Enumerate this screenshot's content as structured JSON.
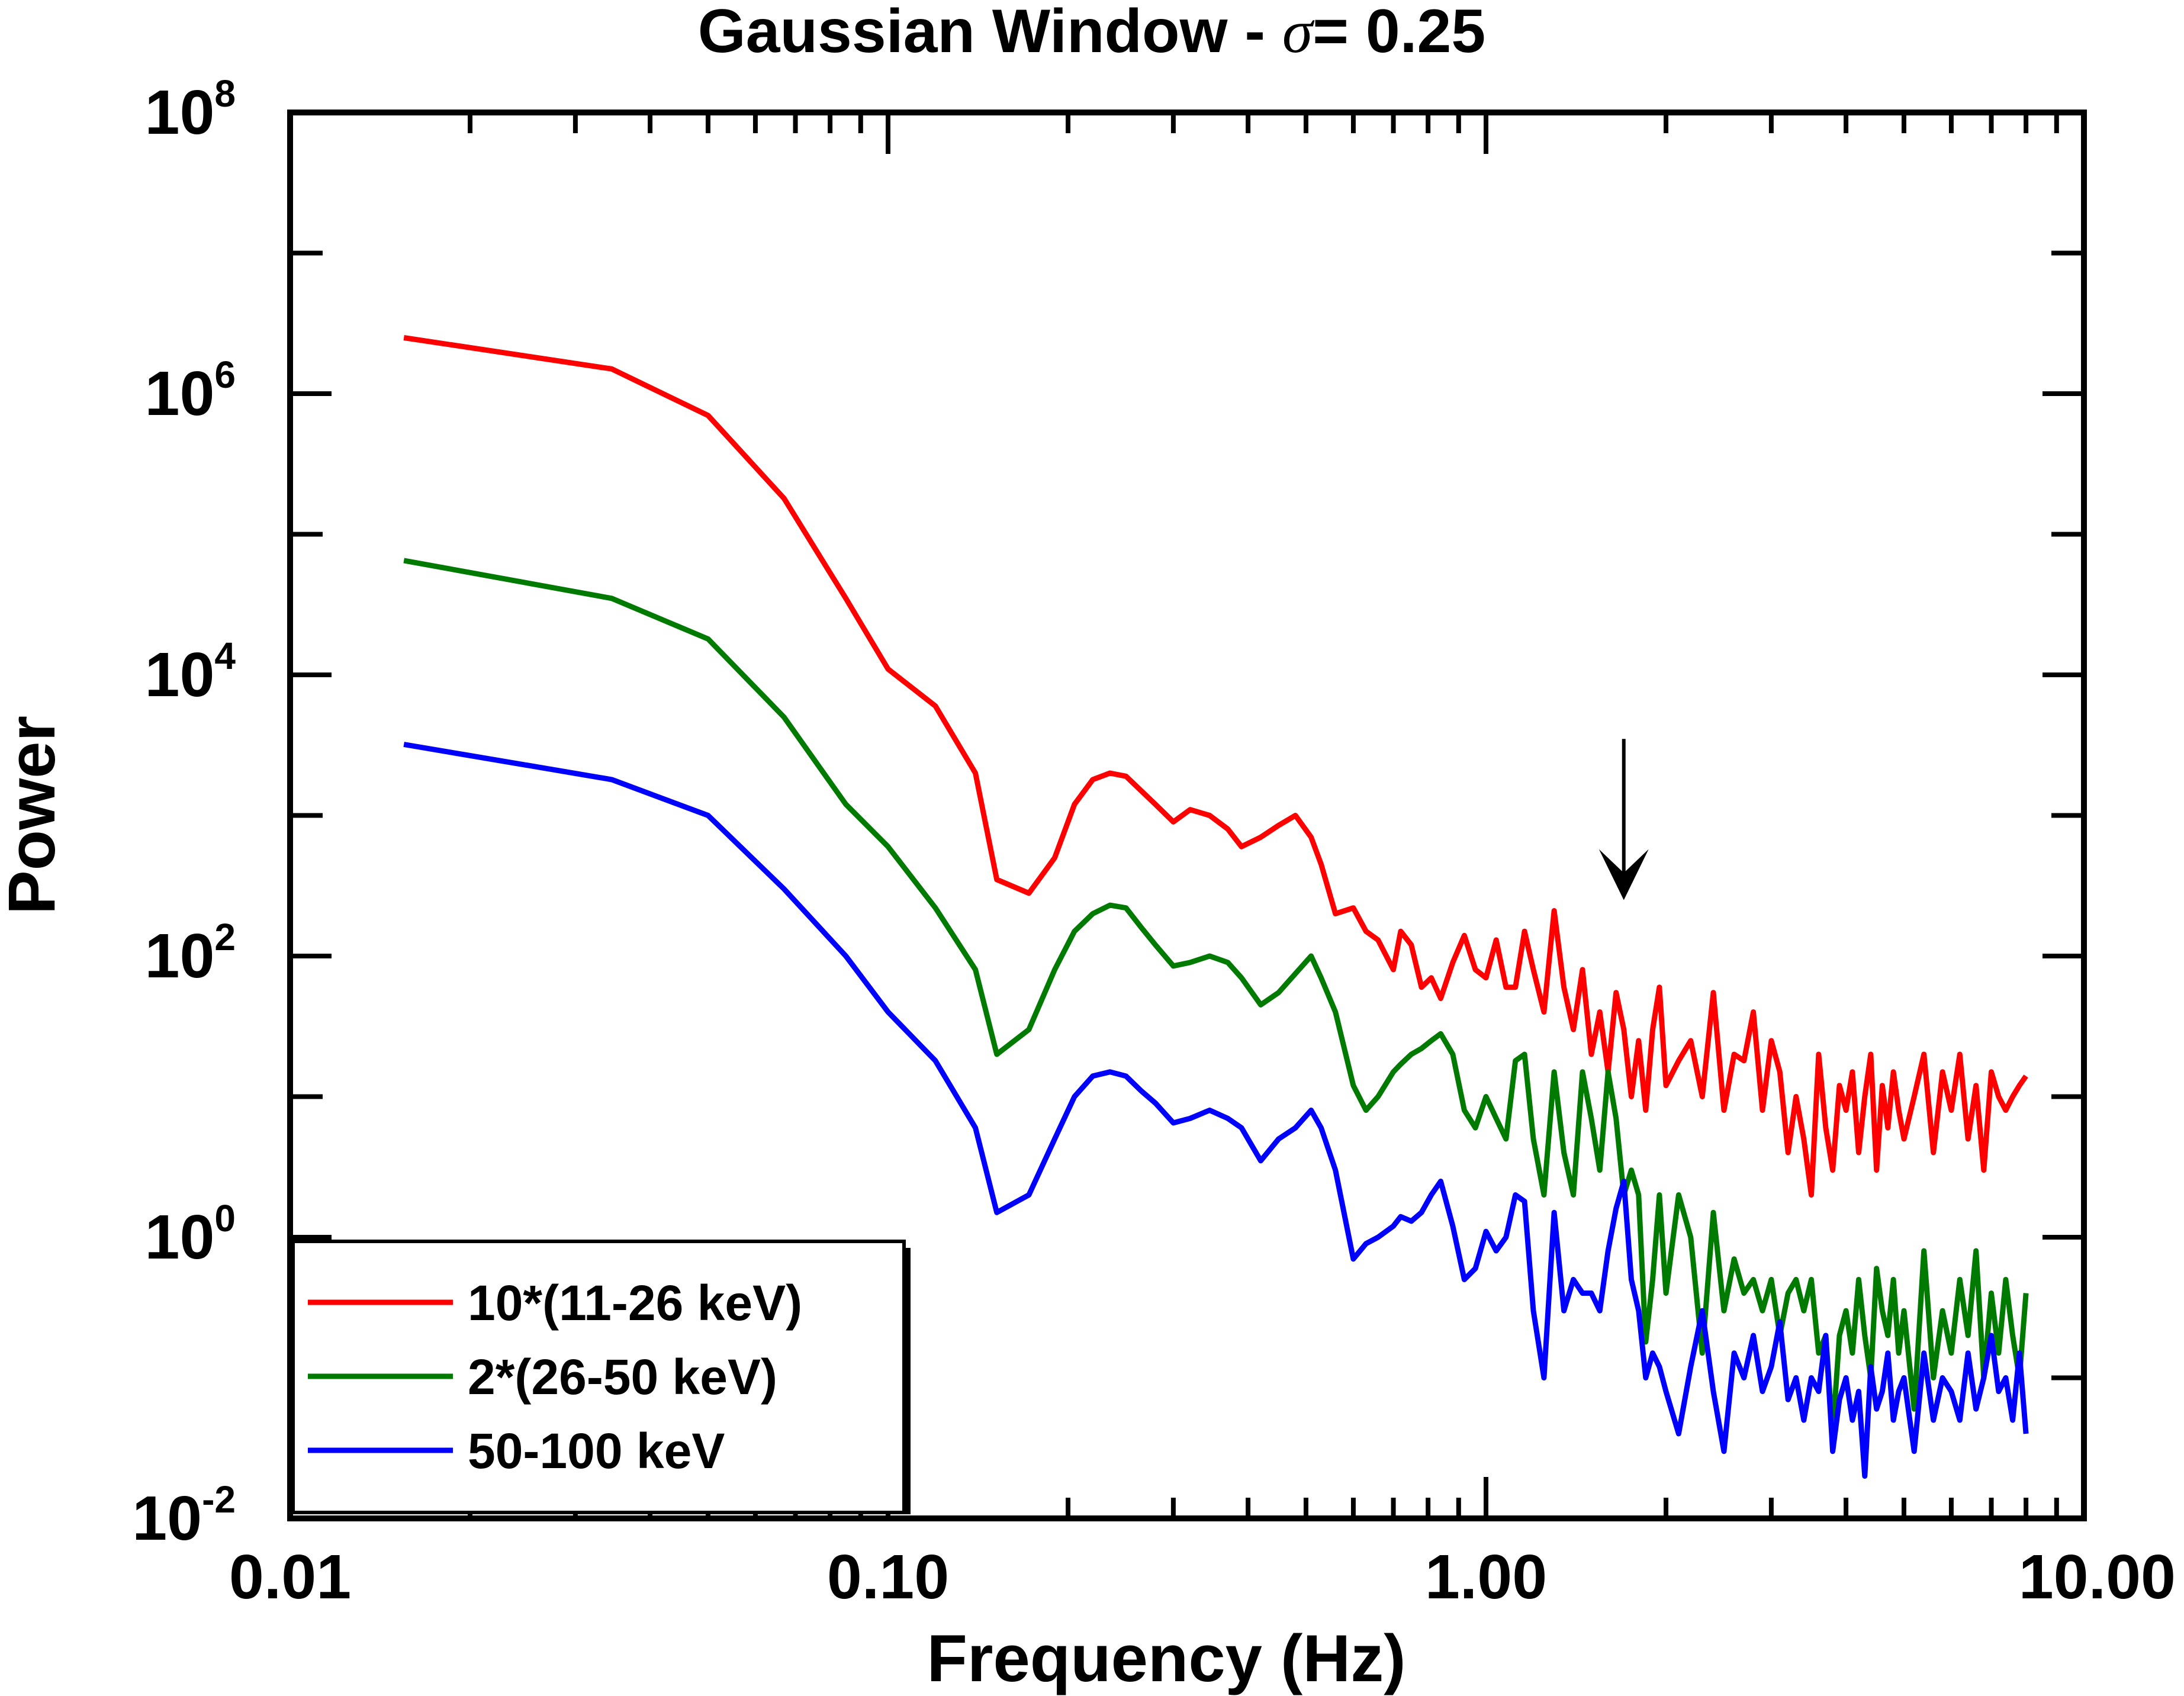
{
  "chart_data": {
    "type": "line",
    "title": {
      "prefix": "Gaussian Window - ",
      "symbol": "σ",
      "suffix": "= 0.25"
    },
    "xlabel": "Frequency (Hz)",
    "ylabel": "Power",
    "xscale": "log",
    "yscale": "log",
    "xlim": [
      0.01,
      10.0
    ],
    "ylim": [
      0.01,
      100000000
    ],
    "xticks": [
      {
        "value": 0.01,
        "label": "0.01"
      },
      {
        "value": 0.1,
        "label": "0.10"
      },
      {
        "value": 1.0,
        "label": "1.00"
      },
      {
        "value": 10.0,
        "label": "10.00"
      }
    ],
    "yticks": [
      {
        "value": 0.01,
        "base": "10",
        "exp": "-2"
      },
      {
        "value": 1,
        "base": "10",
        "exp": "0"
      },
      {
        "value": 100,
        "base": "10",
        "exp": "2"
      },
      {
        "value": 10000,
        "base": "10",
        "exp": "4"
      },
      {
        "value": 1000000,
        "base": "10",
        "exp": "6"
      },
      {
        "value": 100000000,
        "base": "10",
        "exp": "8"
      }
    ],
    "legend_position": "bottom-left",
    "annotation": {
      "type": "arrow",
      "x": 1.7,
      "y_from": 3500,
      "y_to": 250,
      "pointing": "down"
    },
    "series": [
      {
        "name": "10*(11-26 keV)",
        "color": "#ff0000",
        "x": [
          0.0155,
          0.0345,
          0.05,
          0.067,
          0.085,
          0.1,
          0.12,
          0.14,
          0.152,
          0.172,
          0.19,
          0.205,
          0.22,
          0.235,
          0.25,
          0.265,
          0.28,
          0.3,
          0.32,
          0.345,
          0.37,
          0.39,
          0.42,
          0.45,
          0.48,
          0.51,
          0.53,
          0.56,
          0.6,
          0.63,
          0.66,
          0.7,
          0.72,
          0.75,
          0.78,
          0.81,
          0.84,
          0.88,
          0.92,
          0.96,
          1.0,
          1.04,
          1.08,
          1.12,
          1.16,
          1.2,
          1.25,
          1.3,
          1.35,
          1.4,
          1.45,
          1.5,
          1.55,
          1.6,
          1.65,
          1.7,
          1.75,
          1.8,
          1.85,
          1.9,
          1.95,
          2.0,
          2.1,
          2.2,
          2.3,
          2.4,
          2.5,
          2.6,
          2.7,
          2.8,
          2.9,
          3.0,
          3.1,
          3.2,
          3.3,
          3.4,
          3.5,
          3.6,
          3.7,
          3.8,
          3.9,
          4.0,
          4.1,
          4.2,
          4.3,
          4.4,
          4.5,
          4.6,
          4.7,
          4.8,
          4.9,
          5.0,
          5.2,
          5.4,
          5.6,
          5.8,
          6.0,
          6.2,
          6.4,
          6.6,
          6.8,
          7.0,
          7.2,
          7.4,
          7.6,
          7.8,
          8.0
        ],
        "values": [
          2500000,
          1500000,
          700000,
          180000,
          35000,
          11000,
          6000,
          2000,
          350,
          280,
          500,
          1200,
          1800,
          2000,
          1900,
          1500,
          1200,
          900,
          1100,
          1000,
          800,
          600,
          700,
          850,
          1000,
          700,
          450,
          200,
          220,
          150,
          130,
          80,
          150,
          120,
          60,
          70,
          50,
          90,
          140,
          80,
          70,
          130,
          60,
          60,
          150,
          80,
          40,
          210,
          60,
          30,
          80,
          20,
          40,
          15,
          55,
          30,
          10,
          25,
          8,
          30,
          60,
          12,
          18,
          25,
          10,
          55,
          8,
          20,
          18,
          40,
          8,
          25,
          15,
          4,
          10,
          5,
          2,
          20,
          6,
          3,
          12,
          8,
          15,
          4,
          10,
          20,
          3,
          12,
          6,
          15,
          8,
          5,
          10,
          20,
          4,
          15,
          8,
          20,
          5,
          12,
          3,
          15,
          10,
          8,
          10,
          12,
          14
        ]
      },
      {
        "name": "2*(26-50 keV)",
        "color": "#007a00",
        "x": [
          0.0155,
          0.0345,
          0.05,
          0.067,
          0.085,
          0.1,
          0.12,
          0.14,
          0.152,
          0.172,
          0.19,
          0.205,
          0.22,
          0.235,
          0.25,
          0.265,
          0.28,
          0.3,
          0.32,
          0.345,
          0.37,
          0.39,
          0.42,
          0.45,
          0.48,
          0.51,
          0.53,
          0.56,
          0.6,
          0.63,
          0.66,
          0.7,
          0.72,
          0.75,
          0.78,
          0.81,
          0.84,
          0.88,
          0.92,
          0.96,
          1.0,
          1.04,
          1.08,
          1.12,
          1.16,
          1.2,
          1.25,
          1.3,
          1.35,
          1.4,
          1.45,
          1.5,
          1.55,
          1.6,
          1.65,
          1.7,
          1.75,
          1.8,
          1.85,
          1.9,
          1.95,
          2.0,
          2.1,
          2.2,
          2.3,
          2.4,
          2.5,
          2.6,
          2.7,
          2.8,
          2.9,
          3.0,
          3.1,
          3.2,
          3.3,
          3.4,
          3.5,
          3.6,
          3.7,
          3.8,
          3.9,
          4.0,
          4.1,
          4.2,
          4.3,
          4.4,
          4.5,
          4.6,
          4.7,
          4.8,
          4.9,
          5.0,
          5.2,
          5.4,
          5.6,
          5.8,
          6.0,
          6.2,
          6.4,
          6.6,
          6.8,
          7.0,
          7.2,
          7.4,
          7.6,
          7.8,
          8.0
        ],
        "values": [
          65000,
          35000,
          18000,
          5000,
          1200,
          600,
          220,
          80,
          20,
          30,
          80,
          150,
          200,
          230,
          220,
          160,
          120,
          85,
          90,
          100,
          90,
          70,
          45,
          55,
          75,
          100,
          70,
          40,
          12,
          8,
          10,
          15,
          17,
          20,
          22,
          25,
          28,
          20,
          8,
          6,
          10,
          7,
          5,
          18,
          20,
          5,
          2,
          15,
          4,
          2,
          15,
          7,
          3,
          15,
          7,
          2,
          3,
          2,
          0.18,
          0.5,
          2,
          0.4,
          2,
          1,
          0.15,
          1.5,
          0.3,
          0.7,
          0.4,
          0.5,
          0.3,
          0.5,
          0.2,
          0.4,
          0.5,
          0.3,
          0.5,
          0.15,
          0.2,
          0.04,
          0.2,
          0.3,
          0.15,
          0.5,
          0.2,
          0.1,
          0.6,
          0.3,
          0.2,
          0.5,
          0.15,
          0.3,
          0.06,
          0.8,
          0.1,
          0.3,
          0.15,
          0.5,
          0.2,
          0.8,
          0.1,
          0.4,
          0.15,
          0.5,
          0.2,
          0.1,
          0.4
        ]
      },
      {
        "name": "50-100 keV",
        "color": "#0000ff",
        "x": [
          0.0155,
          0.0345,
          0.05,
          0.067,
          0.085,
          0.1,
          0.12,
          0.14,
          0.152,
          0.172,
          0.19,
          0.205,
          0.22,
          0.235,
          0.25,
          0.265,
          0.28,
          0.3,
          0.32,
          0.345,
          0.37,
          0.39,
          0.42,
          0.45,
          0.48,
          0.51,
          0.53,
          0.56,
          0.6,
          0.63,
          0.66,
          0.7,
          0.72,
          0.75,
          0.78,
          0.81,
          0.84,
          0.88,
          0.92,
          0.96,
          1.0,
          1.04,
          1.08,
          1.12,
          1.16,
          1.2,
          1.25,
          1.3,
          1.35,
          1.4,
          1.45,
          1.5,
          1.55,
          1.6,
          1.65,
          1.7,
          1.75,
          1.8,
          1.85,
          1.9,
          1.95,
          2.0,
          2.1,
          2.2,
          2.3,
          2.4,
          2.5,
          2.6,
          2.7,
          2.8,
          2.9,
          3.0,
          3.1,
          3.2,
          3.3,
          3.4,
          3.5,
          3.6,
          3.7,
          3.8,
          3.9,
          4.0,
          4.1,
          4.2,
          4.3,
          4.4,
          4.5,
          4.6,
          4.7,
          4.8,
          4.9,
          5.0,
          5.2,
          5.4,
          5.6,
          5.8,
          6.0,
          6.2,
          6.4,
          6.6,
          6.8,
          7.0,
          7.2,
          7.4,
          7.6,
          7.8,
          8.0
        ],
        "values": [
          3200,
          1800,
          1000,
          300,
          100,
          40,
          18,
          6,
          1.5,
          2,
          5,
          10,
          14,
          15,
          14,
          11,
          9,
          6.5,
          7,
          8,
          7,
          6,
          3.5,
          5,
          6,
          8,
          6,
          3,
          0.7,
          0.9,
          1,
          1.2,
          1.4,
          1.3,
          1.5,
          2,
          2.5,
          1.2,
          0.5,
          0.6,
          1.1,
          0.8,
          1,
          2,
          1.8,
          0.3,
          0.1,
          1.5,
          0.3,
          0.5,
          0.4,
          0.4,
          0.3,
          0.8,
          1.6,
          2.5,
          0.5,
          0.3,
          0.1,
          0.15,
          0.12,
          0.08,
          0.04,
          0.12,
          0.3,
          0.08,
          0.03,
          0.15,
          0.1,
          0.2,
          0.08,
          0.12,
          0.25,
          0.07,
          0.1,
          0.05,
          0.1,
          0.08,
          0.2,
          0.03,
          0.07,
          0.1,
          0.05,
          0.08,
          0.02,
          0.12,
          0.06,
          0.08,
          0.15,
          0.05,
          0.08,
          0.1,
          0.03,
          0.15,
          0.05,
          0.1,
          0.08,
          0.05,
          0.15,
          0.06,
          0.1,
          0.2,
          0.08,
          0.1,
          0.05,
          0.15,
          0.04
        ]
      }
    ]
  }
}
